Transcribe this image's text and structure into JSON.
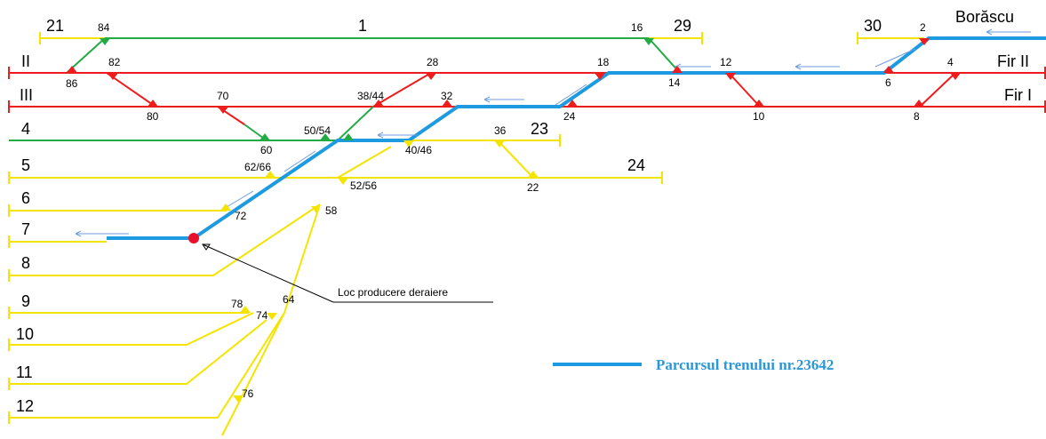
{
  "tracks": [
    {
      "label": "21"
    },
    {
      "label": "1"
    },
    {
      "label": "29"
    },
    {
      "label": "30"
    },
    {
      "label": "Borăscu"
    },
    {
      "label": "II"
    },
    {
      "label": "Fir II"
    },
    {
      "label": "III"
    },
    {
      "label": "Fir I"
    },
    {
      "label": "4"
    },
    {
      "label": "23"
    },
    {
      "label": "5"
    },
    {
      "label": "24"
    },
    {
      "label": "6"
    },
    {
      "label": "7"
    },
    {
      "label": "8"
    },
    {
      "label": "9"
    },
    {
      "label": "10"
    },
    {
      "label": "11"
    },
    {
      "label": "12"
    }
  ],
  "switches": [
    {
      "label": "84"
    },
    {
      "label": "16"
    },
    {
      "label": "2"
    },
    {
      "label": "86"
    },
    {
      "label": "82"
    },
    {
      "label": "28"
    },
    {
      "label": "18"
    },
    {
      "label": "14"
    },
    {
      "label": "12"
    },
    {
      "label": "6"
    },
    {
      "label": "4"
    },
    {
      "label": "80"
    },
    {
      "label": "70"
    },
    {
      "label": "38/44"
    },
    {
      "label": "32"
    },
    {
      "label": "24"
    },
    {
      "label": "10"
    },
    {
      "label": "8"
    },
    {
      "label": "60"
    },
    {
      "label": "50/54"
    },
    {
      "label": "40/46"
    },
    {
      "label": "36"
    },
    {
      "label": "62/66"
    },
    {
      "label": "52/56"
    },
    {
      "label": "22"
    },
    {
      "label": "72"
    },
    {
      "label": "58"
    },
    {
      "label": "78"
    },
    {
      "label": "74"
    },
    {
      "label": "64"
    },
    {
      "label": "76"
    }
  ],
  "annotation": {
    "label": "Loc producere deraiere"
  },
  "legend": {
    "label": "Parcursul trenului nr.23642"
  }
}
